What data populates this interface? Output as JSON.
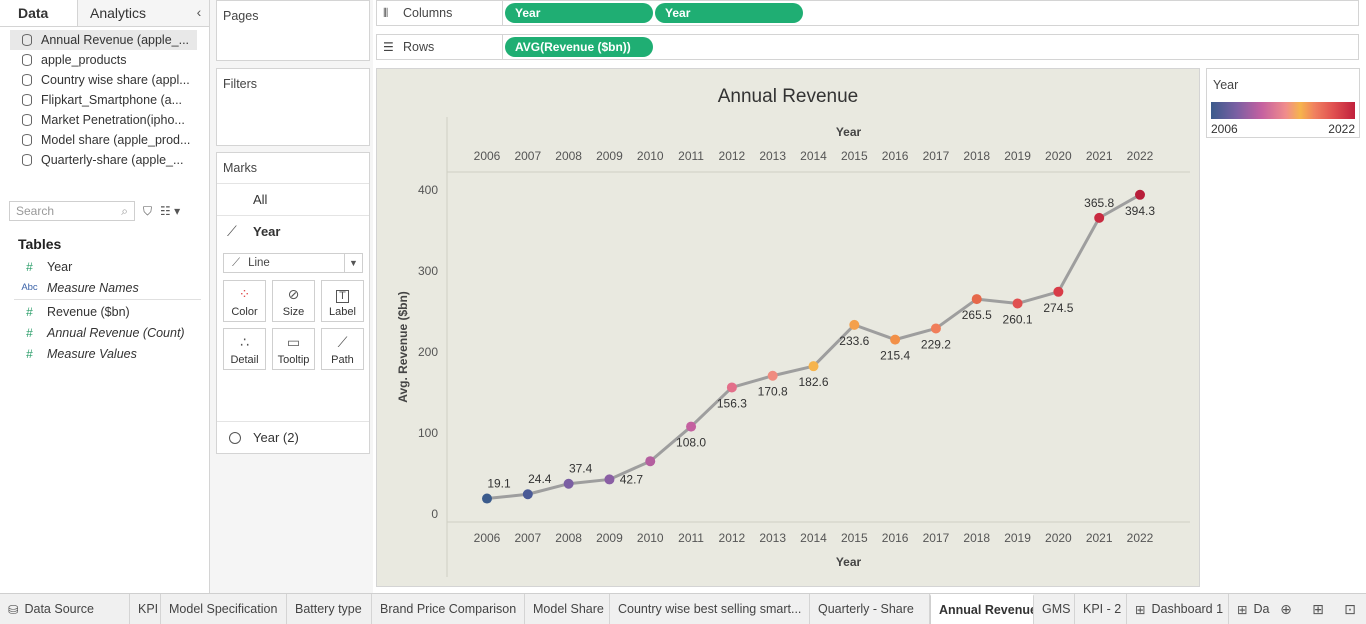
{
  "left_pane": {
    "tabs": [
      "Data",
      "Analytics"
    ],
    "collapse_glyph": "‹",
    "datasources": [
      "Annual Revenue (apple_...",
      "apple_products",
      "Country wise share (appl...",
      "Flipkart_Smartphone (a...",
      "Market Penetration(ipho...",
      "Model share (apple_prod...",
      "Quarterly-share (apple_..."
    ],
    "search_placeholder": "Search",
    "tables_title": "Tables",
    "fields": [
      {
        "icon": "#",
        "label": "Year",
        "italic": false
      },
      {
        "icon": "Abc",
        "label": "Measure Names",
        "italic": true
      },
      {
        "icon": "#",
        "label": "Revenue ($bn)",
        "italic": false
      },
      {
        "icon": "#",
        "label": "Annual Revenue (Count)",
        "italic": true
      },
      {
        "icon": "#",
        "label": "Measure Values",
        "italic": true
      }
    ]
  },
  "cards": {
    "pages": "Pages",
    "filters": "Filters",
    "marks": "Marks",
    "marks_all": "All",
    "marks_year": "Year",
    "mark_type": "Line",
    "buttons": [
      "Color",
      "Size",
      "Label",
      "Detail",
      "Tooltip",
      "Path"
    ],
    "year2": "Year (2)"
  },
  "shelves": {
    "columns_label": "Columns",
    "columns_pills": [
      "Year",
      "Year"
    ],
    "rows_label": "Rows",
    "rows_pill": "AVG(Revenue ($bn))"
  },
  "legend": {
    "title": "Year",
    "min": "2006",
    "max": "2022"
  },
  "chart_data": {
    "type": "line",
    "title": "Annual Revenue",
    "xlabel": "Year",
    "ylabel": "Avg. Revenue ($bn)",
    "ylim": [
      0,
      420
    ],
    "yticks": [
      0,
      100,
      200,
      300,
      400
    ],
    "grid": false,
    "x": [
      "2006",
      "2007",
      "2008",
      "2009",
      "2010",
      "2011",
      "2012",
      "2013",
      "2014",
      "2015",
      "2016",
      "2017",
      "2018",
      "2019",
      "2020",
      "2021",
      "2022"
    ],
    "values": [
      19.1,
      24.4,
      37.4,
      42.7,
      65.2,
      108.0,
      156.3,
      170.8,
      182.6,
      233.6,
      215.4,
      229.2,
      265.5,
      260.1,
      274.5,
      365.8,
      394.3
    ],
    "labels": [
      "19.1",
      "24.4",
      "37.4",
      "42.7",
      "",
      "108.0",
      "156.3",
      "170.8",
      "182.6",
      "233.6",
      "215.4",
      "229.2",
      "265.5",
      "260.1",
      "274.5",
      "365.8",
      "394.3"
    ],
    "point_colors": [
      "#3b5b8c",
      "#4a5a96",
      "#7b5fa3",
      "#8a5fa4",
      "#b45f9f",
      "#c461a0",
      "#e36f8a",
      "#f08c80",
      "#f6b44d",
      "#f4a04c",
      "#f29048",
      "#f07e5a",
      "#e6684a",
      "#e05050",
      "#d83c48",
      "#c82a40",
      "#b81e3a"
    ],
    "line_color": "#9e9e9e"
  },
  "sheet_tabs": [
    {
      "label": "Data Source",
      "icon": "db"
    },
    {
      "label": "KPI"
    },
    {
      "label": "Model Specification"
    },
    {
      "label": "Battery type"
    },
    {
      "label": "Brand Price Comparison"
    },
    {
      "label": "Model Share"
    },
    {
      "label": "Country wise best selling smart..."
    },
    {
      "label": "Quarterly - Share"
    },
    {
      "label": "Annual Revenue",
      "active": true
    },
    {
      "label": "GMS"
    },
    {
      "label": "KPI - 2"
    },
    {
      "label": "Dashboard 1",
      "icon": "grid"
    },
    {
      "label": "Das",
      "icon": "grid"
    }
  ]
}
